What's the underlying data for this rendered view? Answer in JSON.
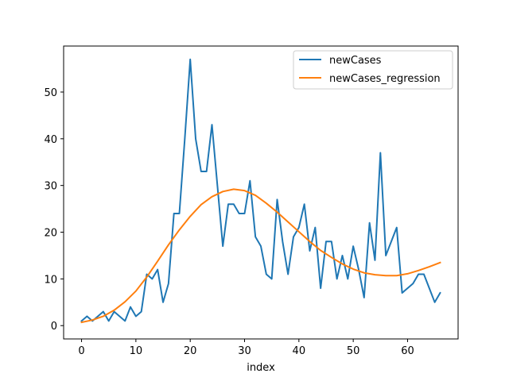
{
  "chart_data": {
    "type": "line",
    "title": "",
    "xlabel": "index",
    "ylabel": "",
    "xlim": [
      -3.3,
      69.3
    ],
    "ylim": [
      -2.85,
      59.85
    ],
    "xticks": [
      0,
      10,
      20,
      30,
      40,
      50,
      60
    ],
    "yticks": [
      0,
      10,
      20,
      30,
      40,
      50
    ],
    "grid": false,
    "legend": {
      "placement": "top-right"
    },
    "series": [
      {
        "name": "newCases",
        "color": "#1f77b4",
        "x": [
          0,
          1,
          2,
          3,
          4,
          5,
          6,
          7,
          8,
          9,
          10,
          11,
          12,
          13,
          14,
          15,
          16,
          17,
          18,
          19,
          20,
          21,
          22,
          23,
          24,
          25,
          26,
          27,
          28,
          29,
          30,
          31,
          32,
          33,
          34,
          35,
          36,
          37,
          38,
          39,
          40,
          41,
          42,
          43,
          44,
          45,
          46,
          47,
          48,
          49,
          50,
          51,
          52,
          53,
          54,
          55,
          56,
          57,
          58,
          59,
          60,
          61,
          62,
          63,
          64,
          65,
          66
        ],
        "values": [
          1,
          2,
          1,
          2,
          3,
          1,
          3,
          2,
          1,
          4,
          2,
          3,
          11,
          10,
          12,
          5,
          9,
          24,
          24,
          40,
          57,
          40,
          33,
          33,
          43,
          30,
          17,
          26,
          26,
          24,
          24,
          31,
          19,
          17,
          11,
          10,
          27,
          18,
          11,
          19,
          21,
          26,
          16,
          21,
          8,
          18,
          18,
          10,
          15,
          10,
          17,
          12,
          6,
          22,
          14,
          37,
          15,
          18,
          21,
          7,
          8,
          9,
          11,
          11,
          8,
          5,
          7
        ]
      },
      {
        "name": "newCases_regression",
        "color": "#ff7f0e",
        "x": [
          0,
          2,
          4,
          6,
          8,
          10,
          12,
          14,
          16,
          18,
          20,
          22,
          24,
          26,
          28,
          30,
          32,
          34,
          36,
          38,
          40,
          42,
          44,
          46,
          48,
          50,
          52,
          54,
          56,
          58,
          60,
          62,
          64,
          66
        ],
        "values": [
          0.7,
          1.2,
          2.0,
          3.3,
          5.1,
          7.4,
          10.4,
          13.8,
          17.3,
          20.5,
          23.4,
          25.9,
          27.6,
          28.7,
          29.2,
          28.9,
          27.9,
          26.2,
          24.3,
          22.2,
          20.1,
          18.0,
          16.1,
          14.6,
          13.2,
          12.1,
          11.3,
          10.9,
          10.7,
          10.7,
          11.1,
          11.8,
          12.6,
          13.5
        ]
      }
    ]
  }
}
